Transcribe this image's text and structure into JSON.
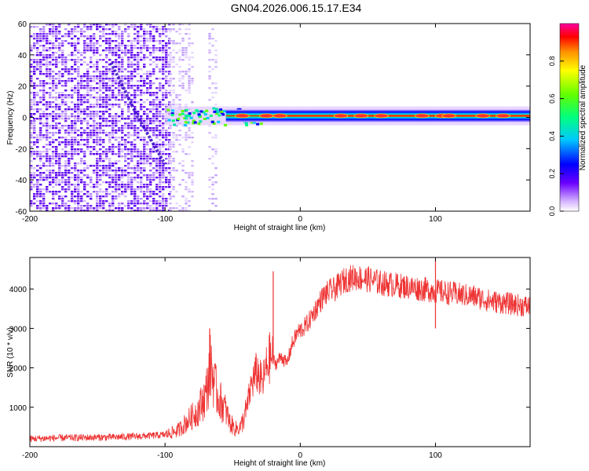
{
  "figure_title": "GN04.2026.006.15.17.E34",
  "chart_data": [
    {
      "type": "heatmap",
      "title": "GN04.2026.006.15.17.E34",
      "xlabel": "Height of straight line (km)",
      "ylabel": "Frequency (Hz)",
      "xlim": [
        -200,
        170
      ],
      "ylim": [
        -60,
        60
      ],
      "x_ticks": [
        -200,
        -100,
        0,
        100
      ],
      "y_ticks": [
        -60,
        -40,
        -20,
        0,
        20,
        40,
        60
      ],
      "x_tick_labels": [
        "-200",
        "-100",
        "0",
        "100"
      ],
      "y_tick_labels": [
        "-60",
        "-40",
        "-20",
        "0",
        "20",
        "40",
        "60"
      ],
      "colorbar": {
        "label": "Normalized spectral amplitude",
        "range": [
          0,
          1
        ],
        "ticks": [
          0,
          0.2,
          0.4,
          0.6,
          0.8
        ],
        "tick_labels": [
          "0.0",
          "0.2",
          "0.4",
          "0.6",
          "0.8"
        ]
      },
      "features": [
        {
          "name": "diffuse noise region",
          "x_range": [
            -200,
            -97
          ],
          "freq_range": [
            -60,
            60
          ],
          "amplitude": 0.2
        },
        {
          "name": "sparse noise column",
          "x_range": [
            -97,
            -80
          ],
          "freq_range": [
            -60,
            60
          ],
          "amplitude": 0.1
        },
        {
          "name": "noise streak",
          "x_range": [
            -68,
            -62
          ],
          "freq_range": [
            -60,
            60
          ],
          "amplitude": 0.08
        },
        {
          "name": "diagonal trail",
          "x": [
            -140,
            -120,
            -100
          ],
          "freq": [
            35,
            0,
            -30
          ],
          "amplitude": 0.25
        },
        {
          "name": "meteor trail",
          "x_range": [
            -100,
            170
          ],
          "center_freq": 1,
          "peak_amplitude": 1.0
        }
      ]
    },
    {
      "type": "line",
      "xlabel": "Height of straight line (km)",
      "ylabel": "SNR (10 * v/v)",
      "xlim": [
        -200,
        170
      ],
      "ylim": [
        0,
        4800
      ],
      "x_ticks": [
        -200,
        -100,
        0,
        100
      ],
      "y_ticks": [
        1000,
        2000,
        3000,
        4000
      ],
      "x_tick_labels": [
        "-200",
        "-100",
        "0",
        "100"
      ],
      "y_tick_labels": [
        "1000",
        "2000",
        "3000",
        "4000"
      ],
      "color": "#ee3333",
      "series": [
        {
          "name": "SNR",
          "x": [
            -200,
            -180,
            -160,
            -140,
            -120,
            -100,
            -90,
            -82,
            -76,
            -70,
            -66,
            -63,
            -60,
            -56,
            -52,
            -48,
            -44,
            -40,
            -36,
            -32,
            -28,
            -25,
            -22,
            -18,
            -14,
            -10,
            -6,
            -2,
            2,
            6,
            10,
            14,
            18,
            22,
            26,
            30,
            34,
            40,
            50,
            60,
            70,
            80,
            90,
            100,
            110,
            120,
            130,
            140,
            150,
            160,
            170
          ],
          "values": [
            200,
            220,
            230,
            240,
            260,
            300,
            420,
            700,
            900,
            1300,
            2100,
            1500,
            1200,
            1000,
            600,
            450,
            500,
            900,
            1600,
            1900,
            1600,
            2000,
            2300,
            2100,
            2300,
            2100,
            2600,
            2900,
            3000,
            3150,
            3400,
            3650,
            3850,
            3950,
            4000,
            4150,
            4250,
            4300,
            4250,
            4150,
            4100,
            4050,
            4000,
            3950,
            3900,
            3850,
            3800,
            3700,
            3650,
            3600,
            3550
          ]
        }
      ],
      "spikes": [
        {
          "x": -67,
          "value": 3000
        },
        {
          "x": -20,
          "value": 4450
        },
        {
          "x": 100,
          "value": 4750
        },
        {
          "x": 100,
          "value": 3000
        }
      ]
    }
  ]
}
